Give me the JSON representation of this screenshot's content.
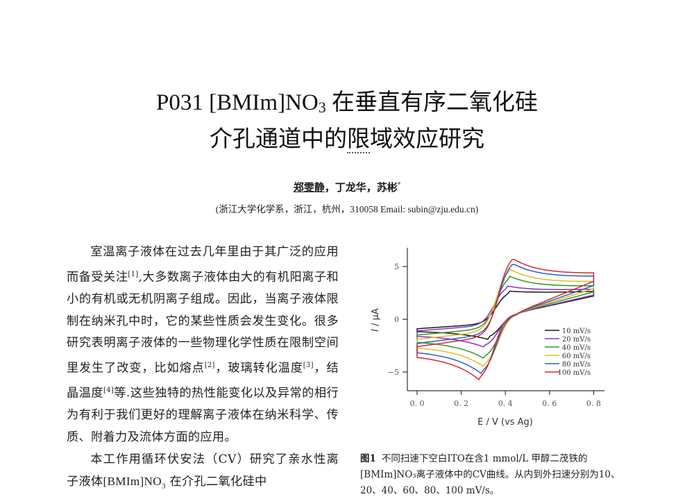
{
  "title": {
    "line1_prefix": "P031 [BMIm]NO",
    "line1_sub": "3",
    "line1_suffix": " 在垂直有序二氧化硅",
    "line2_before": "介孔通道中的",
    "line2_dotted": "限",
    "line2_after": "域效应研究"
  },
  "authors": {
    "first": "郑雯静",
    "rest": "，丁龙华，苏彬",
    "mark": "*"
  },
  "affiliation": "(浙江大学化学系，浙江，杭州，310058 Email: subin@zju.edu.cn)",
  "body": {
    "p1_a": "室温离子液体在过去几年里由于其广泛的应用而备受关注",
    "ref1": "[1]",
    "p1_b": ",大多数离子液体由大的有机阳离子和小的有机或无机阴离子组成。因此，当离子液体限制在纳米孔中时，它的某些性质会发生变化。很多研究表明离子液体的一些物理化学性质在限制空间里发生了改变，比如熔点",
    "ref2": "[2]",
    "p1_c": "，玻璃转化温度",
    "ref3": "[3]",
    "p1_d": "，结晶温度",
    "ref4": "[4]",
    "p1_e": "等.这些独特的热性能变化以及异常的相行为有利于我们更好的理解离子液体在纳米科学、传质、附着力及流体方面的应用。",
    "p2_a": "本工作用循环伏安法（CV）研究了亲水性离子液体",
    "p2_chem": "[BMIm]NO",
    "p2_sub": "3",
    "p2_b": " 在介孔二氧化硅中"
  },
  "caption": {
    "label": "图1",
    "text": "不同扫速下空白ITO在含1  mmol/L 甲醇二茂铁的[BMIm]NO₃离子液体中的CV曲线。从内到外扫速分别为10、20、40、60、80、100 mV/s。"
  },
  "chart_data": {
    "type": "line",
    "title": "",
    "xlabel": "E / V (vs Ag)",
    "ylabel": "I / μA",
    "xlim": [
      -0.03,
      0.83
    ],
    "ylim": [
      -6.8,
      6.8
    ],
    "xticks": [
      "0.0",
      "0.2",
      "0.4",
      "0.6",
      "0.8"
    ],
    "yticks": [
      "5",
      "0",
      "-5"
    ],
    "grid": false,
    "legend_position": "lower right",
    "series": [
      {
        "name": "10 mV/s",
        "color": "#1a1a1a",
        "Epa": 0.42,
        "Ipa": 2.7,
        "Epc": 0.32,
        "Ipc": -1.9,
        "I_start_fwd": -0.9,
        "I_start_rev": -1.1,
        "I_end_fwd": 2.4,
        "I_end_rev": 2.2
      },
      {
        "name": "20 mV/s",
        "color": "#8b2fc9",
        "Epa": 0.41,
        "Ipa": 3.2,
        "Epc": 0.31,
        "Ipc": -2.7,
        "I_start_fwd": -1.1,
        "I_start_rev": -1.5,
        "I_end_fwd": 2.6,
        "I_end_rev": 2.3
      },
      {
        "name": "40 mV/s",
        "color": "#2a9a2a",
        "Epa": 0.42,
        "Ipa": 4.2,
        "Epc": 0.31,
        "Ipc": -3.8,
        "I_start_fwd": -1.5,
        "I_start_rev": -2.0,
        "I_end_fwd": 2.9,
        "I_end_rev": 2.6
      },
      {
        "name": "60 mV/s",
        "color": "#e8b820",
        "Epa": 0.42,
        "Ipa": 4.9,
        "Epc": 0.31,
        "Ipc": -4.6,
        "I_start_fwd": -1.9,
        "I_start_rev": -2.5,
        "I_end_fwd": 3.3,
        "I_end_rev": 2.9
      },
      {
        "name": "80 mV/s",
        "color": "#2a5fc8",
        "Epa": 0.43,
        "Ipa": 5.5,
        "Epc": 0.3,
        "Ipc": -5.3,
        "I_start_fwd": -2.3,
        "I_start_rev": -2.9,
        "I_end_fwd": 3.8,
        "I_end_rev": 3.2
      },
      {
        "name": "100 mV/s",
        "color": "#d42a2a",
        "Epa": 0.43,
        "Ipa": 6.0,
        "Epc": 0.29,
        "Ipc": -5.9,
        "I_start_fwd": -2.6,
        "I_start_rev": -3.3,
        "I_end_fwd": 4.1,
        "I_end_rev": 3.6
      }
    ]
  }
}
